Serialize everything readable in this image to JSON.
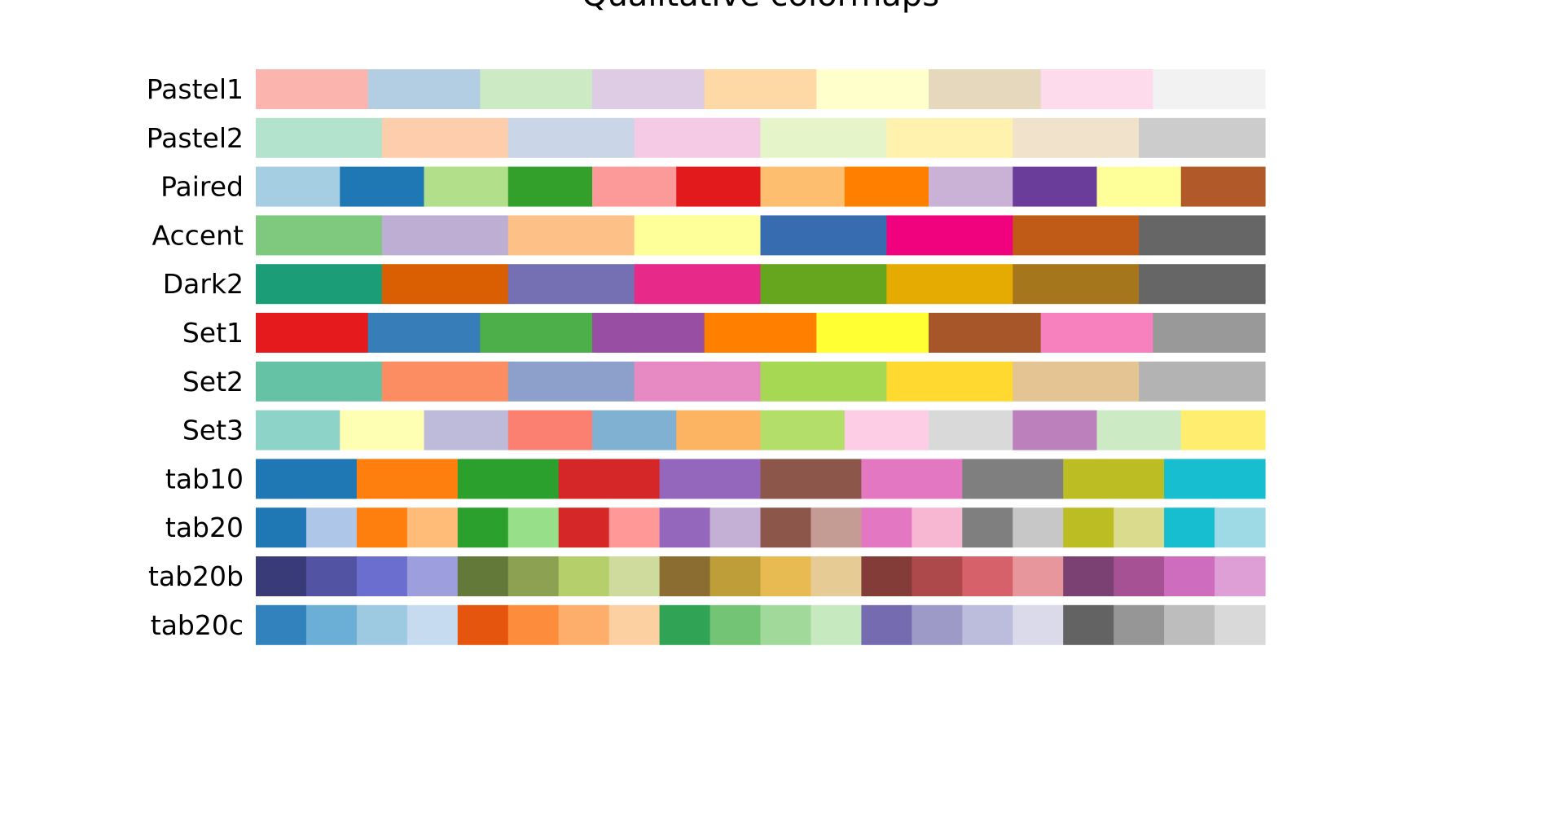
{
  "chart_data": {
    "type": "heatmap",
    "title": "Qualitative colormaps",
    "xlabel": "",
    "ylabel": "",
    "grid": false,
    "colormaps": [
      {
        "name": "Pastel1",
        "colors": [
          "#fbb4ae",
          "#b3cde3",
          "#ccebc5",
          "#decbe4",
          "#fed9a6",
          "#ffffcc",
          "#e5d8bd",
          "#fddaec",
          "#f2f2f2"
        ]
      },
      {
        "name": "Pastel2",
        "colors": [
          "#b3e2cd",
          "#fdcdac",
          "#cbd5e8",
          "#f4cae4",
          "#e6f5c9",
          "#fff2ae",
          "#f1e2cc",
          "#cccccc"
        ]
      },
      {
        "name": "Paired",
        "colors": [
          "#a6cee3",
          "#1f78b4",
          "#b2df8a",
          "#33a02c",
          "#fb9a99",
          "#e31a1c",
          "#fdbf6f",
          "#ff7f00",
          "#cab2d6",
          "#6a3d9a",
          "#ffff99",
          "#b15928"
        ]
      },
      {
        "name": "Accent",
        "colors": [
          "#7fc97f",
          "#beaed4",
          "#fdc086",
          "#ffff99",
          "#386cb0",
          "#f0027f",
          "#bf5b17",
          "#666666"
        ]
      },
      {
        "name": "Dark2",
        "colors": [
          "#1b9e77",
          "#d95f02",
          "#7570b3",
          "#e7298a",
          "#66a61e",
          "#e6ab02",
          "#a6761d",
          "#666666"
        ]
      },
      {
        "name": "Set1",
        "colors": [
          "#e41a1c",
          "#377eb8",
          "#4daf4a",
          "#984ea3",
          "#ff7f00",
          "#ffff33",
          "#a65628",
          "#f781bf",
          "#999999"
        ]
      },
      {
        "name": "Set2",
        "colors": [
          "#66c2a5",
          "#fc8d62",
          "#8da0cb",
          "#e78ac3",
          "#a6d854",
          "#ffd92f",
          "#e5c494",
          "#b3b3b3"
        ]
      },
      {
        "name": "Set3",
        "colors": [
          "#8dd3c7",
          "#ffffb3",
          "#bebada",
          "#fb8072",
          "#80b1d3",
          "#fdb462",
          "#b3de69",
          "#fccde5",
          "#d9d9d9",
          "#bc80bd",
          "#ccebc5",
          "#ffed6f"
        ]
      },
      {
        "name": "tab10",
        "colors": [
          "#1f77b4",
          "#ff7f0e",
          "#2ca02c",
          "#d62728",
          "#9467bd",
          "#8c564b",
          "#e377c2",
          "#7f7f7f",
          "#bcbd22",
          "#17becf"
        ]
      },
      {
        "name": "tab20",
        "colors": [
          "#1f77b4",
          "#aec7e8",
          "#ff7f0e",
          "#ffbb78",
          "#2ca02c",
          "#98df8a",
          "#d62728",
          "#ff9896",
          "#9467bd",
          "#c5b0d5",
          "#8c564b",
          "#c49c94",
          "#e377c2",
          "#f7b6d2",
          "#7f7f7f",
          "#c7c7c7",
          "#bcbd22",
          "#dbdb8d",
          "#17becf",
          "#9edae5"
        ]
      },
      {
        "name": "tab20b",
        "colors": [
          "#393b79",
          "#5254a3",
          "#6b6ecf",
          "#9c9ede",
          "#637939",
          "#8ca252",
          "#b5cf6b",
          "#cedb9c",
          "#8c6d31",
          "#bd9e39",
          "#e7ba52",
          "#e7cb94",
          "#843c39",
          "#ad494a",
          "#d6616b",
          "#e7969c",
          "#7b4173",
          "#a55194",
          "#ce6dbd",
          "#de9ed6"
        ]
      },
      {
        "name": "tab20c",
        "colors": [
          "#3182bd",
          "#6baed6",
          "#9ecae1",
          "#c6dbef",
          "#e6550d",
          "#fd8d3c",
          "#fdae6b",
          "#fdd0a2",
          "#31a354",
          "#74c476",
          "#a1d99b",
          "#c7e9c0",
          "#756bb1",
          "#9e9ac8",
          "#bcbddc",
          "#dadaeb",
          "#636363",
          "#969696",
          "#bdbdbd",
          "#d9d9d9"
        ]
      }
    ]
  }
}
